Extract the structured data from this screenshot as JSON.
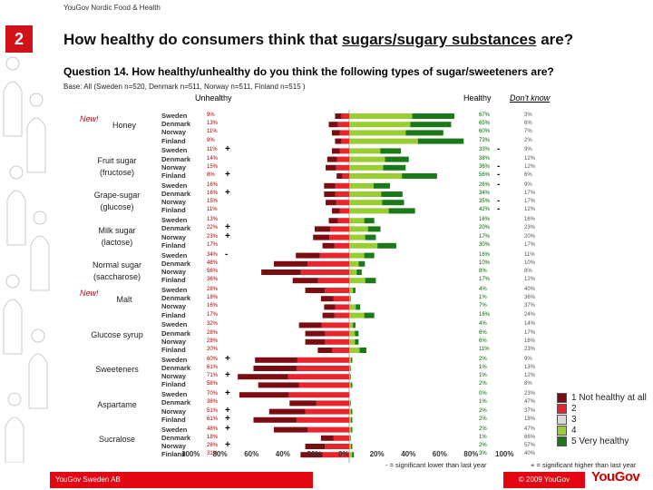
{
  "header": {
    "source": "YouGov Nordic Food & Health",
    "slide_number": "2"
  },
  "title": {
    "prefix": "How healthy do consumers think that ",
    "underlined": "sugars/sugary substances",
    "suffix": " are?"
  },
  "question": "Question 14. How healthy/unhealthy do you think the following types of sugar/sweeteners are?",
  "base": "Base: All (Sweden n=520, Denmark n=511, Norway n=511, Finland n=515 )",
  "col_labels": {
    "unhealthy": "Unhealthy",
    "healthy": "Healthy",
    "dont_know": "Don't know"
  },
  "colors": {
    "c1": "#7a0c12",
    "c2": "#e8242c",
    "c3": "#d9d9d9",
    "c4": "#9acd32",
    "c5": "#1a7a1a",
    "accent": "#e30613"
  },
  "new_label": "New!",
  "chart_data": {
    "type": "bar",
    "orientation": "horizontal diverging",
    "xlim": [
      -100,
      100
    ],
    "x_ticks": [
      "100%",
      "80%",
      "60%",
      "40%",
      "20%",
      "0%",
      "20%",
      "40%",
      "60%",
      "80%",
      "100%"
    ],
    "countries": [
      "Sweden",
      "Denmark",
      "Norway",
      "Finland"
    ],
    "groups": [
      {
        "name": "Honey",
        "is_new": true,
        "unhealthy": [
          "9%",
          "13%",
          "11%",
          "9%"
        ],
        "healthy": [
          "67%",
          "65%",
          "60%",
          "73%"
        ],
        "dont_know": [
          "3%",
          "6%",
          "7%",
          "2%"
        ],
        "un": [
          9,
          13,
          11,
          9
        ],
        "h": [
          67,
          65,
          60,
          73
        ],
        "sig_left": [
          "",
          "",
          "",
          ""
        ],
        "sig_right": [
          "",
          "",
          "",
          ""
        ]
      },
      {
        "name": "Fruit sugar (fructose)",
        "is_new": false,
        "unhealthy": [
          "11%",
          "14%",
          "15%",
          "8%"
        ],
        "healthy": [
          "33%",
          "38%",
          "36%",
          "56%"
        ],
        "dont_know": [
          "9%",
          "12%",
          "12%",
          "6%"
        ],
        "un": [
          11,
          14,
          15,
          8
        ],
        "h": [
          33,
          38,
          36,
          56
        ],
        "sig_left": [
          "+",
          "",
          "",
          "+"
        ],
        "sig_right": [
          "-",
          "",
          "-",
          "-"
        ]
      },
      {
        "name": "Grape-sugar (glucose)",
        "is_new": false,
        "unhealthy": [
          "16%",
          "16%",
          "15%",
          "11%"
        ],
        "healthy": [
          "26%",
          "34%",
          "35%",
          "42%"
        ],
        "dont_know": [
          "9%",
          "17%",
          "17%",
          "12%"
        ],
        "un": [
          16,
          16,
          15,
          11
        ],
        "h": [
          26,
          34,
          35,
          42
        ],
        "sig_left": [
          "",
          "+",
          "",
          ""
        ],
        "sig_right": [
          "-",
          "",
          "-",
          "-"
        ]
      },
      {
        "name": "Milk sugar (lactose)",
        "is_new": false,
        "unhealthy": [
          "13%",
          "22%",
          "23%",
          "17%"
        ],
        "healthy": [
          "16%",
          "20%",
          "17%",
          "30%"
        ],
        "dont_know": [
          "16%",
          "23%",
          "20%",
          "17%"
        ],
        "un": [
          13,
          22,
          23,
          17
        ],
        "h": [
          16,
          20,
          17,
          30
        ],
        "sig_left": [
          "",
          "+",
          "+",
          ""
        ],
        "sig_right": [
          "",
          "",
          "",
          ""
        ]
      },
      {
        "name": "Normal sugar (saccharose)",
        "is_new": false,
        "unhealthy": [
          "34%",
          "48%",
          "56%",
          "36%"
        ],
        "healthy": [
          "16%",
          "10%",
          "8%",
          "17%"
        ],
        "dont_know": [
          "11%",
          "10%",
          "8%",
          "12%"
        ],
        "un": [
          34,
          48,
          56,
          36
        ],
        "h": [
          16,
          10,
          8,
          17
        ],
        "sig_left": [
          "-",
          "",
          "",
          ""
        ],
        "sig_right": [
          "",
          "",
          "",
          ""
        ]
      },
      {
        "name": "Malt",
        "is_new": true,
        "unhealthy": [
          "28%",
          "18%",
          "16%",
          "17%"
        ],
        "healthy": [
          "4%",
          "1%",
          "7%",
          "16%"
        ],
        "dont_know": [
          "40%",
          "36%",
          "37%",
          "24%"
        ],
        "un": [
          28,
          18,
          16,
          17
        ],
        "h": [
          4,
          1,
          7,
          16
        ],
        "sig_left": [
          "",
          "",
          "",
          ""
        ],
        "sig_right": [
          "",
          "",
          "",
          ""
        ]
      },
      {
        "name": "Glucose syrup",
        "is_new": false,
        "unhealthy": [
          "32%",
          "28%",
          "28%",
          "20%"
        ],
        "healthy": [
          "4%",
          "6%",
          "6%",
          "11%"
        ],
        "dont_know": [
          "14%",
          "17%",
          "16%",
          "23%"
        ],
        "un": [
          32,
          28,
          28,
          20
        ],
        "h": [
          4,
          6,
          6,
          11
        ],
        "sig_left": [
          "",
          "",
          "",
          ""
        ],
        "sig_right": [
          "",
          "",
          "",
          ""
        ]
      },
      {
        "name": "Sweeteners",
        "is_new": false,
        "unhealthy": [
          "60%",
          "61%",
          "71%",
          "58%"
        ],
        "healthy": [
          "2%",
          "1%",
          "1%",
          "2%"
        ],
        "dont_know": [
          "9%",
          "13%",
          "12%",
          "8%"
        ],
        "un": [
          60,
          61,
          71,
          58
        ],
        "h": [
          2,
          1,
          1,
          2
        ],
        "sig_left": [
          "+",
          "",
          "+",
          ""
        ],
        "sig_right": [
          "",
          "",
          "",
          ""
        ]
      },
      {
        "name": "Aspartame",
        "is_new": false,
        "unhealthy": [
          "70%",
          "38%",
          "51%",
          "61%"
        ],
        "healthy": [
          "0%",
          "1%",
          "2%",
          "2%"
        ],
        "dont_know": [
          "23%",
          "47%",
          "37%",
          "18%"
        ],
        "un": [
          70,
          38,
          51,
          61
        ],
        "h": [
          0,
          1,
          2,
          2
        ],
        "sig_left": [
          "+",
          "",
          "+",
          "+"
        ],
        "sig_right": [
          "",
          "",
          "",
          ""
        ]
      },
      {
        "name": "Sucralose",
        "is_new": false,
        "unhealthy": [
          "48%",
          "18%",
          "28%",
          "31%"
        ],
        "healthy": [
          "2%",
          "1%",
          "2%",
          "3%"
        ],
        "dont_know": [
          "47%",
          "66%",
          "57%",
          "40%"
        ],
        "un": [
          48,
          18,
          28,
          31
        ],
        "h": [
          2,
          1,
          2,
          3
        ],
        "sig_left": [
          "+",
          "",
          "+",
          ""
        ],
        "sig_right": [
          "",
          "",
          "",
          ""
        ]
      }
    ],
    "legend": [
      {
        "label": "1 Not healthy at all",
        "color": "#7a0c12"
      },
      {
        "label": "2",
        "color": "#e8242c"
      },
      {
        "label": "3",
        "color": "#d9d9d9"
      },
      {
        "label": "4",
        "color": "#9acd32"
      },
      {
        "label": "5 Very healthy",
        "color": "#1a7a1a"
      }
    ]
  },
  "notes": {
    "minus": "- = significant lower than last year",
    "plus": "+ = significant higher than last year"
  },
  "footer": {
    "left": "YouGov Sweden AB",
    "right": "© 2009 YouGov",
    "logo": "YouGov"
  }
}
